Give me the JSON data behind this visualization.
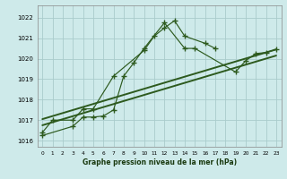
{
  "title": "Graphe pression niveau de la mer (hPa)",
  "bg_color": "#ceeaea",
  "grid_color": "#aacccc",
  "line_color": "#2d5a1e",
  "yticks": [
    1016,
    1017,
    1018,
    1019,
    1020,
    1021,
    1022
  ],
  "ylim": [
    1015.7,
    1022.6
  ],
  "xlim": [
    -0.5,
    23.5
  ],
  "s1_x": [
    0,
    1,
    3,
    4,
    5,
    7,
    10,
    11,
    12,
    13,
    14,
    16,
    17
  ],
  "s1_y": [
    1016.4,
    1017.0,
    1017.0,
    1017.55,
    1017.55,
    1019.15,
    1020.4,
    1021.1,
    1021.5,
    1021.85,
    1021.1,
    1020.75,
    1020.5
  ],
  "s2_x": [
    0,
    3,
    4,
    5,
    6,
    7,
    8,
    9,
    10,
    12,
    14,
    15,
    19,
    20,
    21,
    22,
    23
  ],
  "s2_y": [
    1016.25,
    1016.7,
    1017.15,
    1017.15,
    1017.2,
    1017.5,
    1019.15,
    1019.8,
    1020.5,
    1021.75,
    1020.5,
    1020.5,
    1019.35,
    1019.9,
    1020.25,
    1020.3,
    1020.45
  ],
  "trend1_x": [
    0,
    23
  ],
  "trend1_y": [
    1017.05,
    1020.45
  ],
  "trend2_x": [
    0,
    23
  ],
  "trend2_y": [
    1016.75,
    1020.15
  ]
}
